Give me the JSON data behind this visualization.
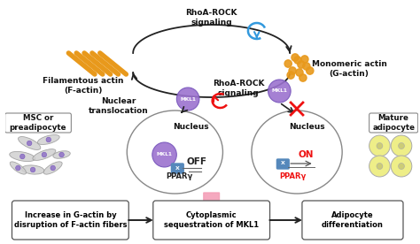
{
  "bg_color": "#ffffff",
  "box1_text": "Increase in G-actin by\ndisruption of F-actin fibers",
  "box2_text": "Cytoplasmic\nsequestration of MKL1",
  "box3_text": "Adipocyte\ndifferentiation",
  "label_factin": "Filamentous actin\n(F-actin)",
  "label_gactin": "Monomeric actin\n(G-actin)",
  "label_rhoarock_top": "RhoA-ROCK\nsignaling",
  "label_rhoarock_mid": "RhoA-ROCK\nsignaling",
  "label_nuclear_transloc": "Nuclear\ntranslocation",
  "label_nucleus_left": "Nucleus",
  "label_nucleus_right": "Nucleus",
  "label_off": "OFF",
  "label_on": "ON",
  "label_pparg": "PPARγ",
  "label_msc": "MSC or\npreadipocyte",
  "label_mature": "Mature\nadipocyte",
  "actin_color": "#E8991C",
  "purple_color": "#9B72CF",
  "purple_light": "#B899E0",
  "pink_arrow_color": "#F4A0B8",
  "red_color": "#EE1111",
  "blue_color": "#3399DD",
  "blue_box": "#5588BB",
  "arrow_color": "#222222",
  "text_color": "#111111",
  "gray_cell": "#BBBBBB",
  "yellow_cell": "#EEEE99"
}
